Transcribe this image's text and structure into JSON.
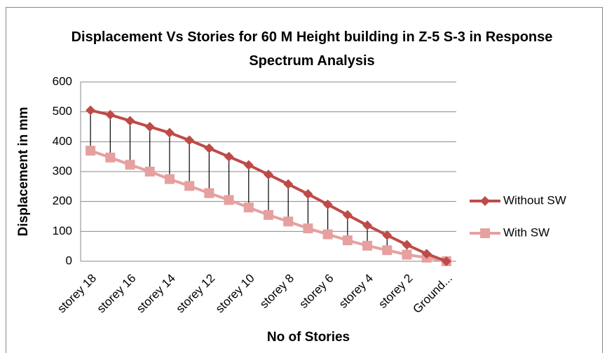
{
  "chart_data": {
    "type": "line",
    "title": "Displacement Vs Stories for 60 M Height building in Z-5 S-3 in Response Spectrum Analysis",
    "x_label": "No of Stories",
    "y_label": "Displacement in mm",
    "categories": [
      "storey 18",
      null,
      "storey 16",
      null,
      "storey 14",
      null,
      "storey 12",
      null,
      "storey 10",
      null,
      "storey 8",
      null,
      "storey 6",
      null,
      "storey 4",
      null,
      "storey 2",
      null,
      "Ground..."
    ],
    "series": [
      {
        "name": "Without SW",
        "color": "#be4b48",
        "marker": "diamond",
        "values": [
          505,
          490,
          470,
          450,
          430,
          405,
          378,
          350,
          322,
          290,
          258,
          225,
          190,
          155,
          120,
          87,
          55,
          25,
          0
        ]
      },
      {
        "name": "With SW",
        "color": "#e6a0a0",
        "marker": "square",
        "values": [
          370,
          347,
          323,
          300,
          275,
          252,
          228,
          205,
          180,
          155,
          133,
          110,
          90,
          70,
          52,
          37,
          22,
          12,
          0
        ]
      }
    ],
    "drop_lines": true,
    "ylim": [
      0,
      600
    ],
    "yticks": [
      0,
      100,
      200,
      300,
      400,
      500,
      600
    ],
    "grid": true,
    "legend": "right"
  }
}
